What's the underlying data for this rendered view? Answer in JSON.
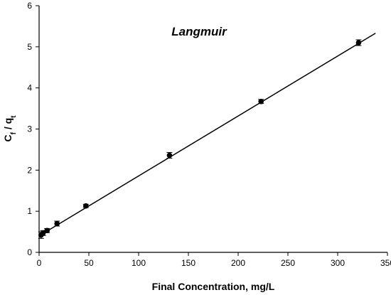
{
  "chart_data": {
    "type": "scatter",
    "title": "Langmuir",
    "xlabel": "Final Concentration, mg/L",
    "ylabel": {
      "main": "C",
      "sub1": "f",
      "sep": " / q",
      "sub2": "t"
    },
    "xlim": [
      0,
      350
    ],
    "ylim": [
      0,
      6
    ],
    "xticks": [
      0,
      50,
      100,
      150,
      200,
      250,
      300,
      350
    ],
    "yticks": [
      0,
      1,
      2,
      3,
      4,
      5,
      6
    ],
    "grid": false,
    "legend": "none",
    "series": [
      {
        "points": [
          {
            "x": 2,
            "y": 0.42,
            "err": 0.08
          },
          {
            "x": 4,
            "y": 0.47,
            "err": 0.06
          },
          {
            "x": 8,
            "y": 0.53,
            "err": 0.05
          },
          {
            "x": 18,
            "y": 0.7,
            "err": 0.06
          },
          {
            "x": 47,
            "y": 1.13,
            "err": 0.04
          },
          {
            "x": 131,
            "y": 2.36,
            "err": 0.07
          },
          {
            "x": 223,
            "y": 3.67,
            "err": 0.05
          },
          {
            "x": 321,
            "y": 5.1,
            "err": 0.07
          }
        ],
        "fit_line": {
          "x_start": 0,
          "y_start": 0.4,
          "x_end": 338,
          "y_end": 5.33
        }
      }
    ],
    "colors": {
      "marker": "#000000",
      "line": "#000000",
      "axis": "#000000"
    }
  }
}
